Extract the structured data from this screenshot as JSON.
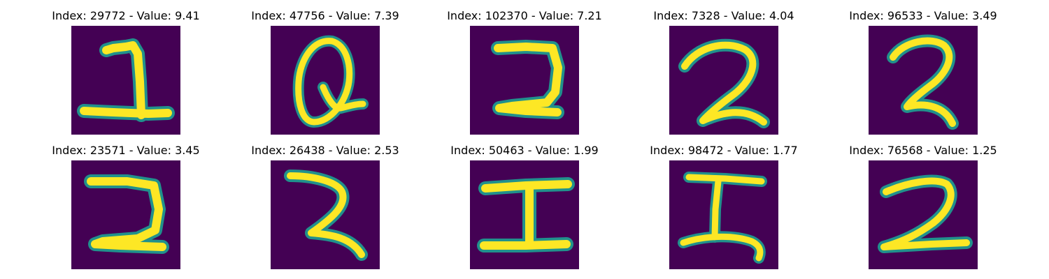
{
  "panels": [
    {
      "index": "29772",
      "value": "9.41",
      "title": "Index: 29772 - Value: 9.41",
      "glyph": "1"
    },
    {
      "index": "47756",
      "value": "7.39",
      "title": "Index: 47756 - Value: 7.39",
      "glyph": "Q"
    },
    {
      "index": "102370",
      "value": "7.21",
      "title": "Index: 102370 - Value: 7.21",
      "glyph": "2"
    },
    {
      "index": "7328",
      "value": "4.04",
      "title": "Index: 7328 - Value: 4.04",
      "glyph": "2"
    },
    {
      "index": "96533",
      "value": "3.49",
      "title": "Index: 96533 - Value: 3.49",
      "glyph": "2"
    },
    {
      "index": "23571",
      "value": "3.45",
      "title": "Index: 23571 - Value: 3.45",
      "glyph": "2"
    },
    {
      "index": "26438",
      "value": "2.53",
      "title": "Index: 26438 - Value: 2.53",
      "glyph": "2"
    },
    {
      "index": "50463",
      "value": "1.99",
      "title": "Index: 50463 - Value: 1.99",
      "glyph": "I"
    },
    {
      "index": "98472",
      "value": "1.77",
      "title": "Index: 98472 - Value: 1.77",
      "glyph": "I"
    },
    {
      "index": "76568",
      "value": "1.25",
      "title": "Index: 76568 - Value: 1.25",
      "glyph": "2"
    }
  ],
  "colors": {
    "background": "#440154",
    "stroke_edge": "#21918c",
    "stroke_core": "#fde725"
  }
}
